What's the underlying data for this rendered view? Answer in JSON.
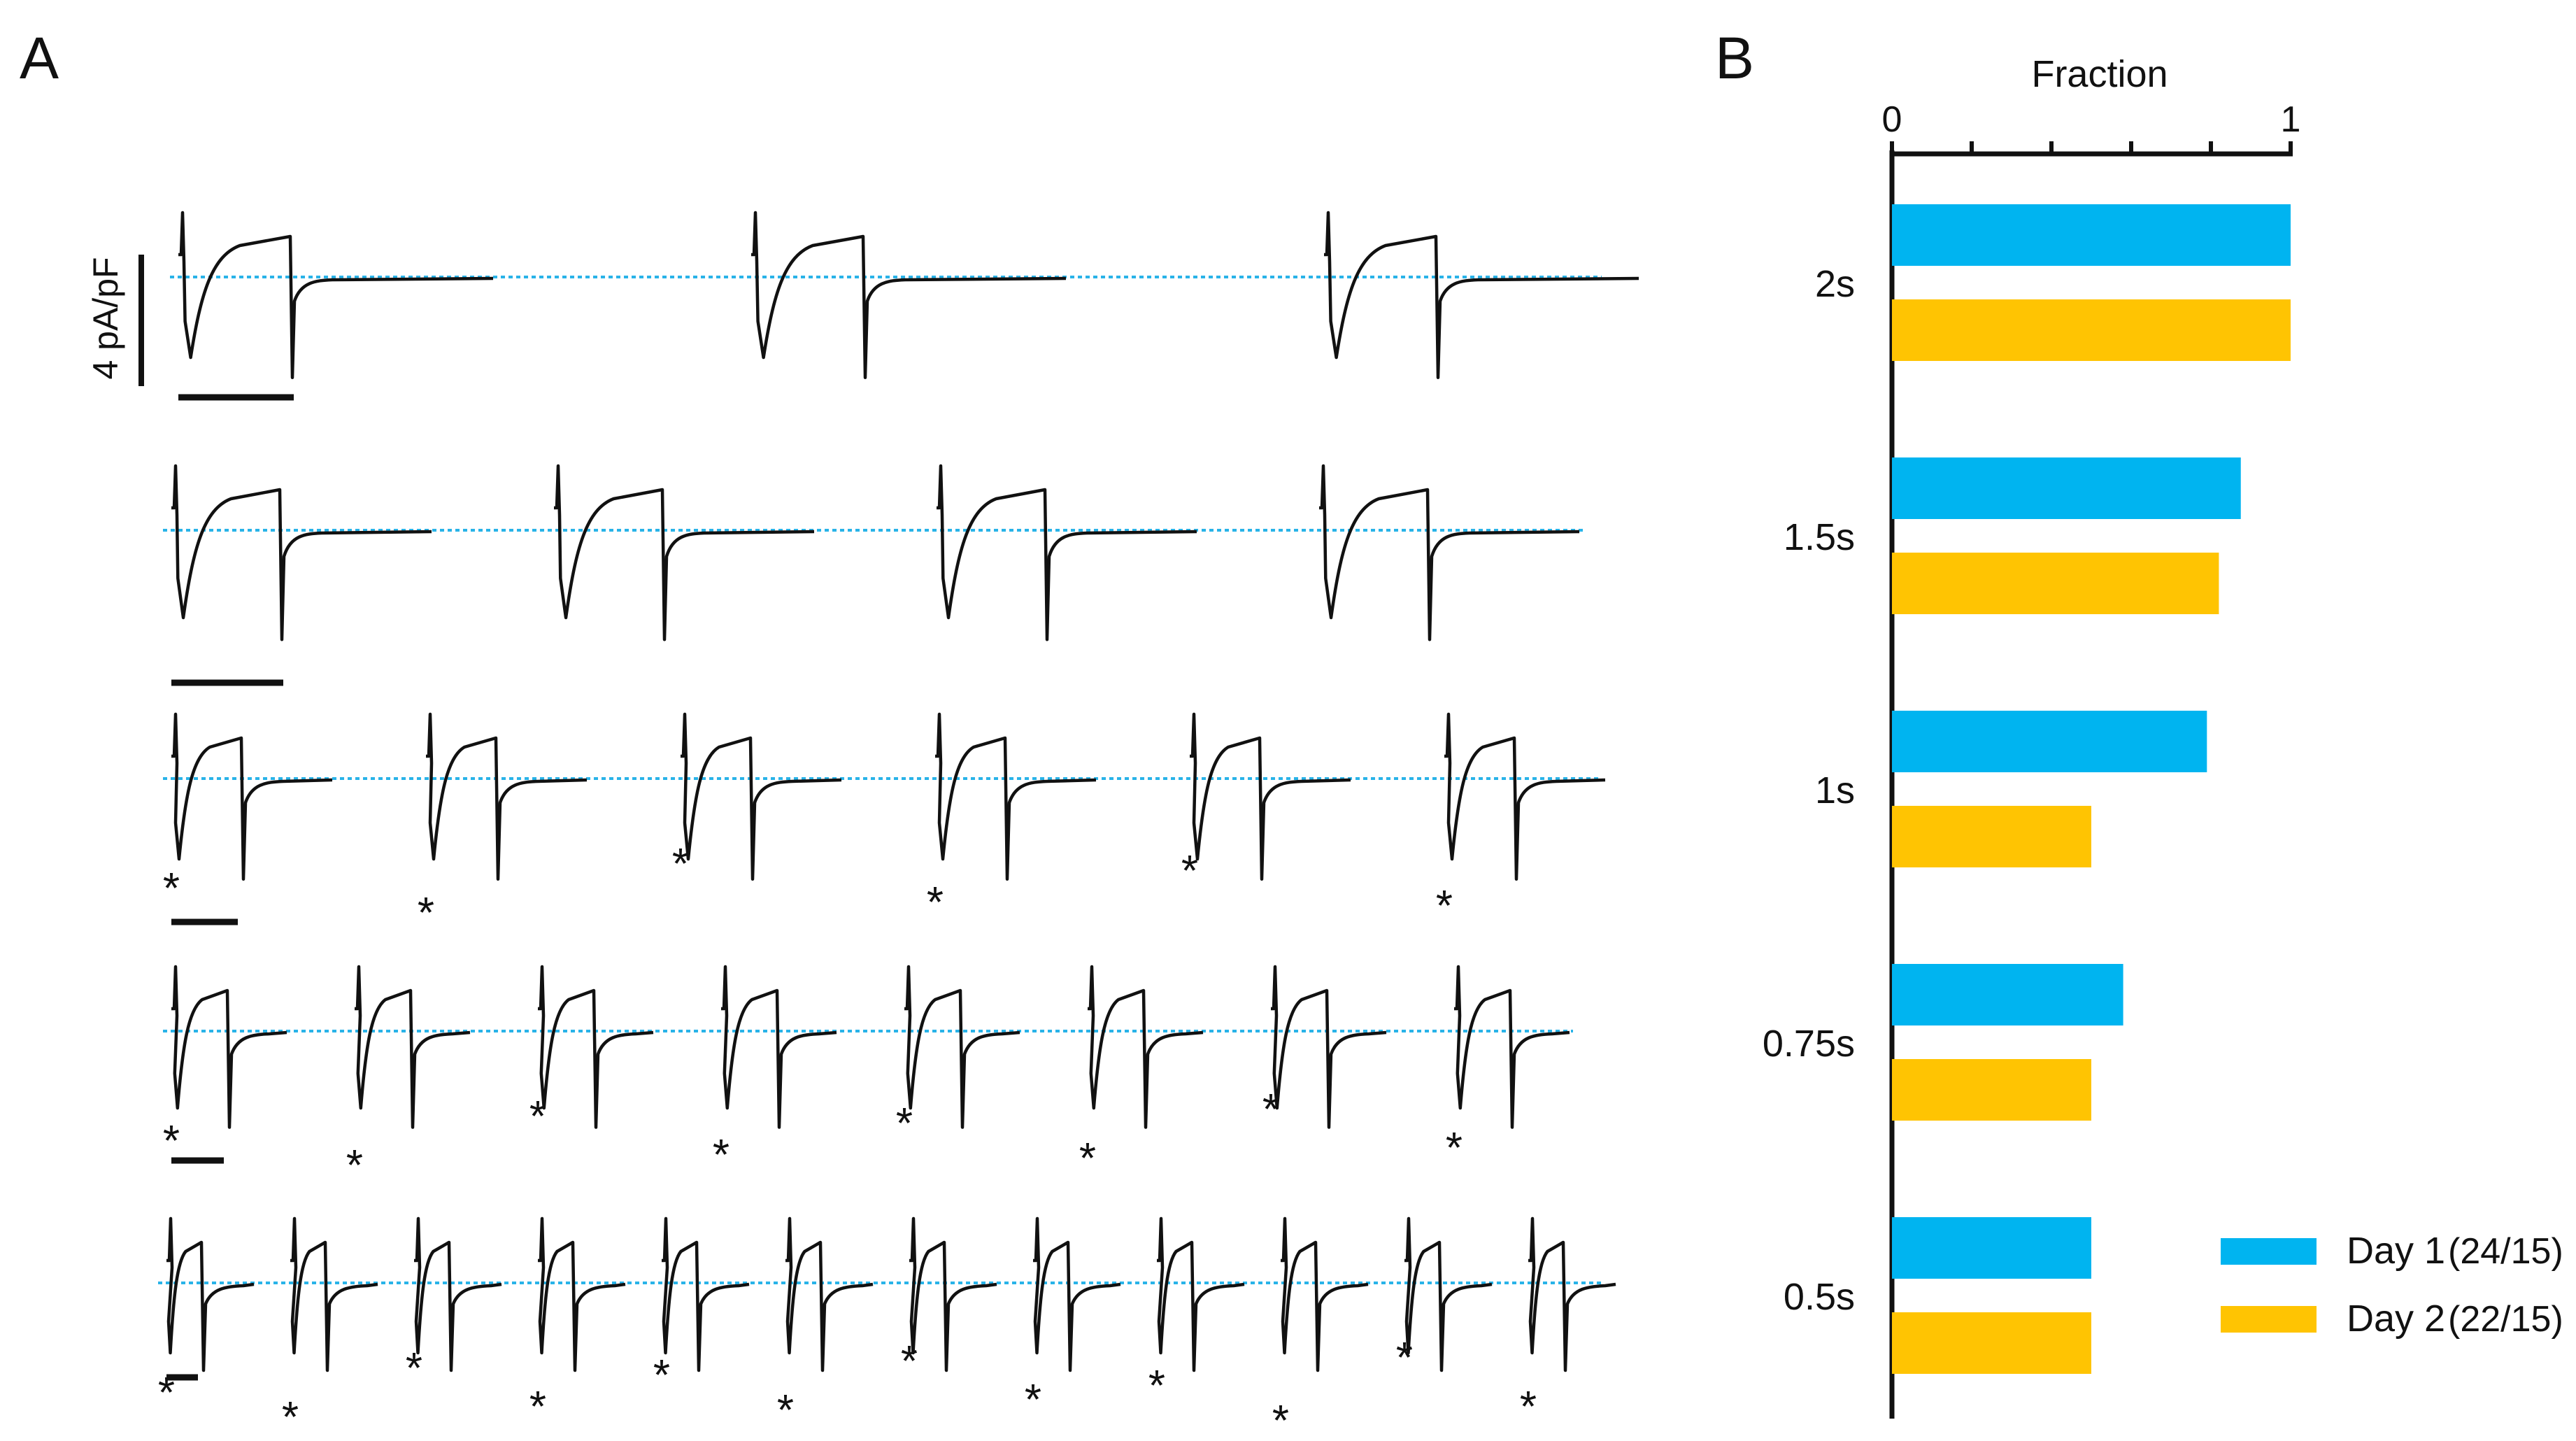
{
  "panel_a": {
    "label": "A",
    "scale_bar_label": "4 pA/pF",
    "baseline_color": "#29b3e8",
    "trace_color": "#111111",
    "marker_symbol": "*",
    "rows": [
      {
        "sweeps": 3,
        "asterisks": false
      },
      {
        "sweeps": 4,
        "asterisks": false
      },
      {
        "sweeps": 6,
        "asterisks": true
      },
      {
        "sweeps": 8,
        "asterisks": true
      },
      {
        "sweeps": 12,
        "asterisks": true
      }
    ]
  },
  "chart_data": {
    "panel_label": "B",
    "type": "bar",
    "orientation": "horizontal",
    "title": "Fraction",
    "xlabel": "Fraction",
    "ylabel": "",
    "xlim": [
      0,
      1
    ],
    "x_ticks": [
      0,
      0.2,
      0.4,
      0.6,
      0.8,
      1
    ],
    "x_tick_labels": [
      "0",
      "",
      "",
      "",
      "",
      "1"
    ],
    "grid": false,
    "legend_position": "bottom-right",
    "categories": [
      "2s",
      "1.5s",
      "1s",
      "0.75s",
      "0.5s"
    ],
    "series": [
      {
        "name": "Day 1",
        "note": "(24/15)",
        "color": "#00b4f0",
        "values": [
          1.0,
          0.875,
          0.79,
          0.58,
          0.5
        ]
      },
      {
        "name": "Day 2",
        "note": "(22/15)",
        "color": "#ffc402",
        "values": [
          1.0,
          0.82,
          0.5,
          0.5,
          0.5
        ]
      }
    ]
  }
}
